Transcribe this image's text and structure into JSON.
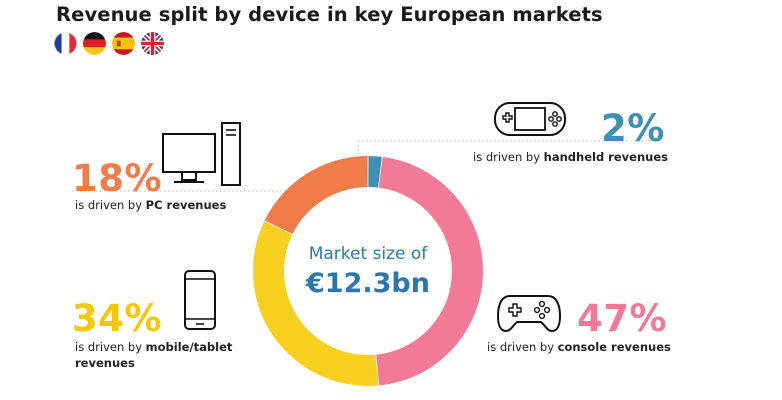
{
  "title": "Revenue split by device in key European markets",
  "flags": [
    "france-flag",
    "germany-flag",
    "spain-flag",
    "uk-flag"
  ],
  "center": {
    "line1": "Market size of",
    "value": "€12.3bn"
  },
  "segments": {
    "pc": {
      "percent": "18%",
      "prefix": "is driven by",
      "label": "PC revenues",
      "color": "#f07c4a"
    },
    "handheld": {
      "percent": "2%",
      "prefix": "is driven by",
      "label": "handheld revenues",
      "color": "#3f90b3"
    },
    "mobile": {
      "percent": "34%",
      "prefix": "is driven by",
      "label": "mobile/tablet revenues",
      "color": "#f7cf1f"
    },
    "console": {
      "percent": "47%",
      "prefix": "is driven by",
      "label": "console revenues",
      "color": "#f27a96"
    }
  },
  "chart_data": {
    "type": "pie",
    "title": "Revenue split by device in key European markets",
    "categories": [
      "Handheld",
      "Console",
      "Mobile/tablet",
      "PC"
    ],
    "values": [
      2,
      47,
      34,
      18
    ],
    "colors": [
      "#3f90b3",
      "#f27a96",
      "#f7cf1f",
      "#f07c4a"
    ],
    "center_label": "Market size of €12.3bn"
  }
}
